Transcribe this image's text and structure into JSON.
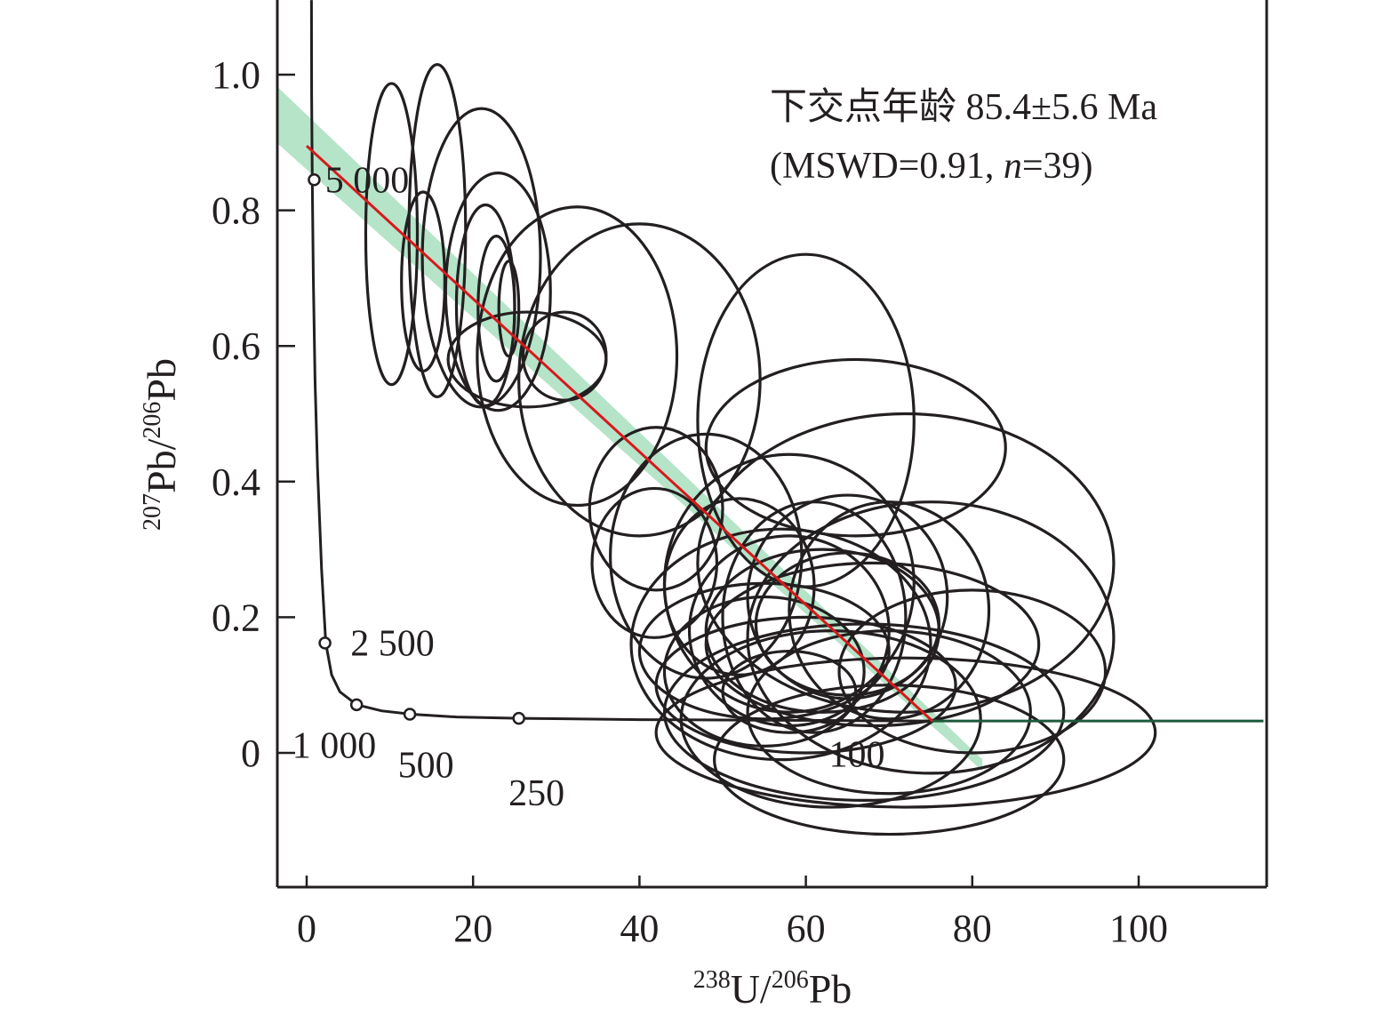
{
  "chart_data": {
    "type": "scatter",
    "subtype": "Tera-Wasserburg concordia diagram with error ellipses",
    "xlabel": {
      "sup1": "238",
      "main1": "U/",
      "sup2": "206",
      "main2": "Pb"
    },
    "ylabel": {
      "sup1": "207",
      "main1": "Pb/",
      "sup2": "206",
      "main2": "Pb"
    },
    "xlim": [
      -3.5,
      115
    ],
    "ylim": [
      -0.2,
      1.11
    ],
    "x_ticks": [
      {
        "value": 0,
        "label": "0"
      },
      {
        "value": 20,
        "label": "20"
      },
      {
        "value": 40,
        "label": "40"
      },
      {
        "value": 60,
        "label": "60"
      },
      {
        "value": 80,
        "label": "80"
      },
      {
        "value": 100,
        "label": "100"
      }
    ],
    "y_ticks": [
      {
        "value": 0,
        "label": "0"
      },
      {
        "value": 0.2,
        "label": "0.2"
      },
      {
        "value": 0.4,
        "label": "0.4"
      },
      {
        "value": 0.6,
        "label": "0.6"
      },
      {
        "value": 0.8,
        "label": "0.8"
      },
      {
        "value": 1.0,
        "label": "1.0"
      }
    ],
    "annotation": {
      "line1": "下交点年龄 85.4±5.6 Ma",
      "line2_prefix": "(MSWD=0.91, ",
      "line2_italic": "n",
      "line2_suffix": "=39)"
    },
    "regression": {
      "start": [
        0,
        0.895
      ],
      "end": [
        75.2,
        0.047
      ],
      "color": "#d7191c",
      "band_color": "#a8dfc0",
      "band_half_width": 0.038
    },
    "concordia": {
      "color": "#231f20",
      "points": [
        [
          0.58,
          1.11
        ],
        [
          0.6,
          0.97
        ],
        [
          0.67,
          0.845
        ],
        [
          0.8,
          0.7
        ],
        [
          1.0,
          0.55
        ],
        [
          1.3,
          0.42
        ],
        [
          1.8,
          0.27
        ],
        [
          2.3,
          0.162
        ],
        [
          3.0,
          0.115
        ],
        [
          4.0,
          0.09
        ],
        [
          6.0,
          0.071
        ],
        [
          9.0,
          0.062
        ],
        [
          12.6,
          0.057
        ],
        [
          18.0,
          0.053
        ],
        [
          25.5,
          0.051
        ],
        [
          40.0,
          0.049
        ],
        [
          60.0,
          0.048
        ],
        [
          75.0,
          0.047
        ],
        [
          115.0,
          0.047
        ]
      ],
      "age_markers": [
        {
          "age": "5 000",
          "x": 0.9,
          "y": 0.845,
          "label_dx": 0.25,
          "label_dy": 0.0
        },
        {
          "age": "2 500",
          "x": 2.2,
          "y": 0.162,
          "label_dx": 2.0,
          "label_dy": 0.0
        },
        {
          "age": "1 000",
          "x": 6.0,
          "y": 0.071,
          "label_dx": -8.8,
          "label_dy": -0.06
        },
        {
          "age": "500",
          "x": 12.4,
          "y": 0.057,
          "label_dx": -2.5,
          "label_dy": -0.075
        },
        {
          "age": "250",
          "x": 25.5,
          "y": 0.051,
          "label_dx": -2.3,
          "label_dy": -0.11
        },
        {
          "age": "100",
          "x": 64.0,
          "y": 0.048,
          "label_dx": -2.3,
          "label_dy": -0.05,
          "no_marker": true
        }
      ]
    },
    "ellipses": [
      {
        "cx": 10.2,
        "cy": 0.765,
        "rx": 3.1,
        "ry": 0.222,
        "angle": 0
      },
      {
        "cx": 15.7,
        "cy": 0.77,
        "rx": 3.4,
        "ry": 0.245,
        "angle": 0
      },
      {
        "cx": 14.0,
        "cy": 0.695,
        "rx": 2.6,
        "ry": 0.132,
        "angle": 0
      },
      {
        "cx": 21.0,
        "cy": 0.73,
        "rx": 7.1,
        "ry": 0.22,
        "angle": 0
      },
      {
        "cx": 23.0,
        "cy": 0.68,
        "rx": 6.3,
        "ry": 0.175,
        "angle": 0
      },
      {
        "cx": 21.5,
        "cy": 0.66,
        "rx": 3.5,
        "ry": 0.148,
        "angle": 0
      },
      {
        "cx": 22.8,
        "cy": 0.655,
        "rx": 2.2,
        "ry": 0.107,
        "angle": 0
      },
      {
        "cx": 24.3,
        "cy": 0.655,
        "rx": 1.2,
        "ry": 0.07,
        "angle": 0
      },
      {
        "cx": 26.5,
        "cy": 0.58,
        "rx": 9.5,
        "ry": 0.07,
        "angle": 0
      },
      {
        "cx": 31.0,
        "cy": 0.585,
        "rx": 5.0,
        "ry": 0.065,
        "angle": 0
      },
      {
        "cx": 32.5,
        "cy": 0.585,
        "rx": 12.0,
        "ry": 0.22,
        "angle": 0
      },
      {
        "cx": 40.0,
        "cy": 0.55,
        "rx": 14.5,
        "ry": 0.23,
        "angle": 0
      },
      {
        "cx": 60.0,
        "cy": 0.49,
        "rx": 13.0,
        "ry": 0.245,
        "angle": 0
      },
      {
        "cx": 66.0,
        "cy": 0.45,
        "rx": 18.0,
        "ry": 0.13,
        "angle": 0
      },
      {
        "cx": 42.0,
        "cy": 0.36,
        "rx": 8.0,
        "ry": 0.12,
        "angle": 0
      },
      {
        "cx": 41.8,
        "cy": 0.28,
        "rx": 7.5,
        "ry": 0.11,
        "angle": 0
      },
      {
        "cx": 48.0,
        "cy": 0.29,
        "rx": 11.5,
        "ry": 0.18,
        "angle": 0
      },
      {
        "cx": 52.0,
        "cy": 0.245,
        "rx": 9.0,
        "ry": 0.13,
        "angle": 0
      },
      {
        "cx": 58.0,
        "cy": 0.25,
        "rx": 15.0,
        "ry": 0.19,
        "angle": 0
      },
      {
        "cx": 72.0,
        "cy": 0.28,
        "rx": 25.0,
        "ry": 0.22,
        "angle": 0
      },
      {
        "cx": 55.0,
        "cy": 0.15,
        "rx": 15.0,
        "ry": 0.1,
        "angle": 0
      },
      {
        "cx": 57.0,
        "cy": 0.16,
        "rx": 18.0,
        "ry": 0.17,
        "angle": 0
      },
      {
        "cx": 62.0,
        "cy": 0.18,
        "rx": 14.0,
        "ry": 0.12,
        "angle": 0
      },
      {
        "cx": 65.0,
        "cy": 0.19,
        "rx": 11.0,
        "ry": 0.105,
        "angle": 0
      },
      {
        "cx": 65.0,
        "cy": 0.23,
        "rx": 12.0,
        "ry": 0.15,
        "angle": 0
      },
      {
        "cx": 70.0,
        "cy": 0.21,
        "rx": 12.0,
        "ry": 0.16,
        "angle": 0
      },
      {
        "cx": 68.0,
        "cy": 0.16,
        "rx": 20.0,
        "ry": 0.12,
        "angle": 0
      },
      {
        "cx": 75.0,
        "cy": 0.17,
        "rx": 22.0,
        "ry": 0.2,
        "angle": 0
      },
      {
        "cx": 60.0,
        "cy": 0.1,
        "rx": 18.0,
        "ry": 0.1,
        "angle": 0
      },
      {
        "cx": 55.0,
        "cy": 0.12,
        "rx": 12.0,
        "ry": 0.11,
        "angle": 0
      },
      {
        "cx": 58.0,
        "cy": 0.09,
        "rx": 8.0,
        "ry": 0.06,
        "angle": 0
      },
      {
        "cx": 63.0,
        "cy": 0.05,
        "rx": 18.0,
        "ry": 0.13,
        "angle": 0
      },
      {
        "cx": 67.0,
        "cy": 0.06,
        "rx": 24.0,
        "ry": 0.13,
        "angle": 0
      },
      {
        "cx": 72.0,
        "cy": 0.03,
        "rx": 30.0,
        "ry": 0.11,
        "angle": 0
      },
      {
        "cx": 70.0,
        "cy": -0.01,
        "rx": 21.0,
        "ry": 0.11,
        "angle": 0
      },
      {
        "cx": 70.0,
        "cy": 0.06,
        "rx": 17.0,
        "ry": 0.12,
        "angle": 0
      },
      {
        "cx": 61.0,
        "cy": 0.2,
        "rx": 11.0,
        "ry": 0.17,
        "angle": 0
      },
      {
        "cx": 58.0,
        "cy": 0.18,
        "rx": 12.0,
        "ry": 0.14,
        "angle": 0
      },
      {
        "cx": 80.0,
        "cy": 0.12,
        "rx": 16.0,
        "ry": 0.12,
        "angle": 0
      }
    ]
  }
}
